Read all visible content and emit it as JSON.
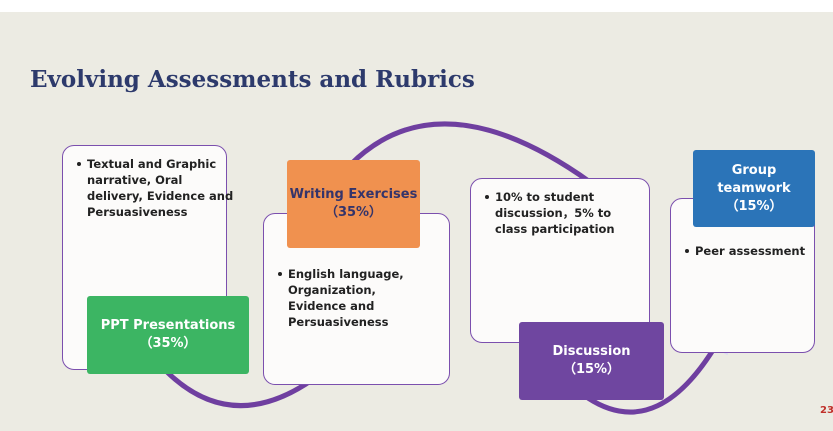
{
  "title": "Evolving Assessments and Rubrics",
  "page_number": "23",
  "stages": [
    {
      "label": "PPT Presentations",
      "weight": "（35%）",
      "bullets": [
        "Textual and Graphic narrative, Oral delivery, Evidence and Persuasiveness"
      ]
    },
    {
      "label": "Writing Exercises",
      "weight": "（35%）",
      "bullets": [
        "English language, Organization, Evidence and Persuasiveness"
      ]
    },
    {
      "label": "Discussion",
      "weight": "（15%）",
      "bullets": [
        "10% to student discussion，5% to class participation"
      ]
    },
    {
      "label": "Group teamwork",
      "weight": "（15%）",
      "bullets": [
        "Peer assessment"
      ]
    }
  ]
}
